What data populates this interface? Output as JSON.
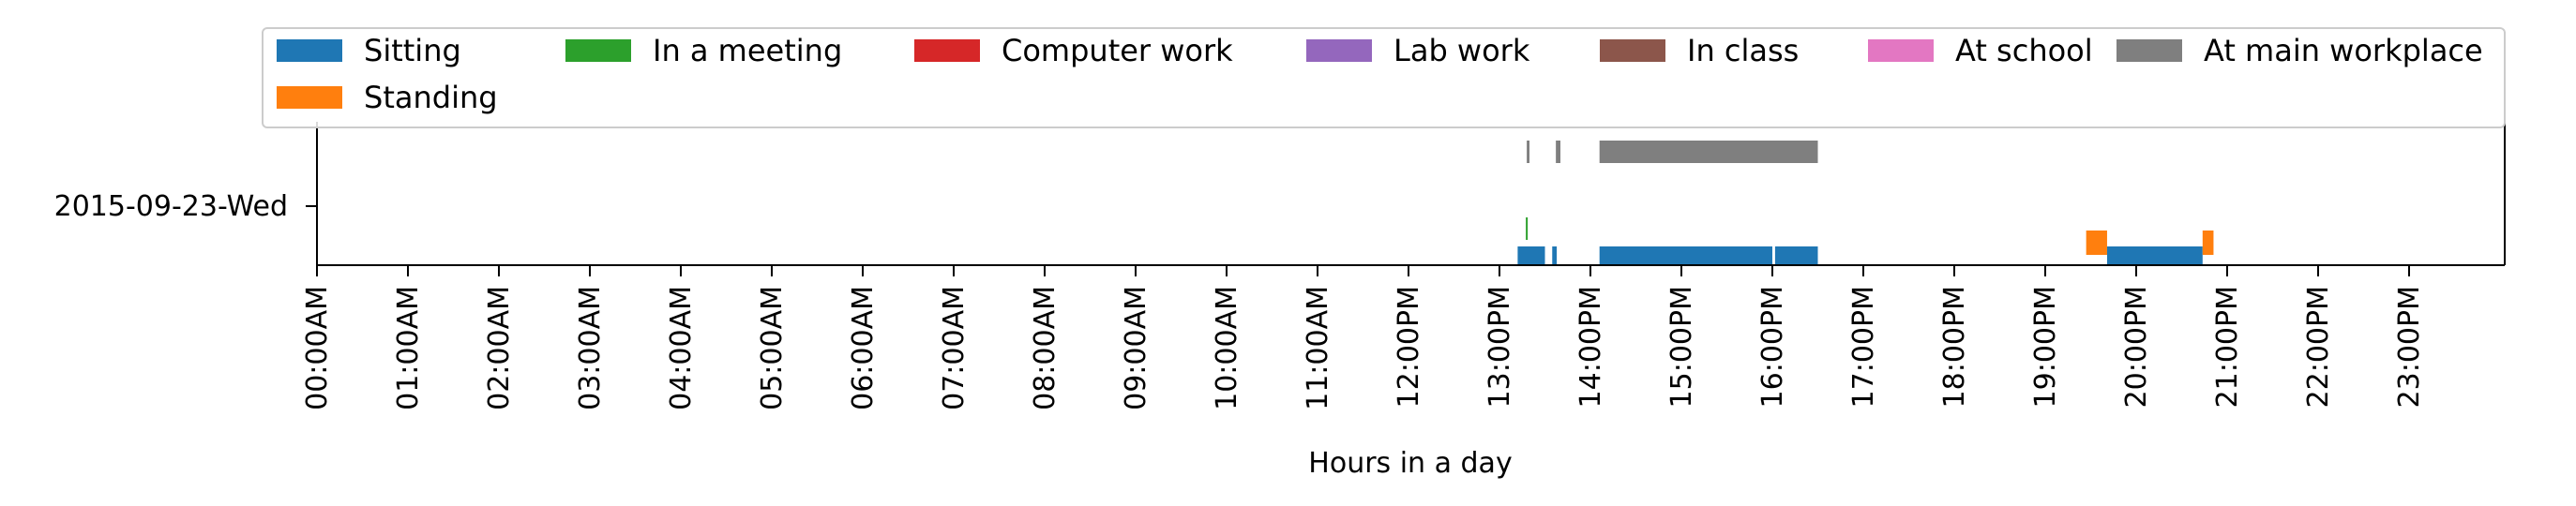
{
  "chart_data": {
    "type": "timeline",
    "xlabel": "Hours in a day",
    "x_ticks": [
      "00:00AM",
      "01:00AM",
      "02:00AM",
      "03:00AM",
      "04:00AM",
      "05:00AM",
      "06:00AM",
      "07:00AM",
      "08:00AM",
      "09:00AM",
      "10:00AM",
      "11:00AM",
      "12:00PM",
      "13:00PM",
      "14:00PM",
      "15:00PM",
      "16:00PM",
      "17:00PM",
      "18:00PM",
      "19:00PM",
      "20:00PM",
      "21:00PM",
      "22:00PM",
      "23:00PM"
    ],
    "xlim_hours": [
      0,
      24
    ],
    "y_ticks": [
      "2015-09-23-Wed"
    ],
    "legend": {
      "placement": "top",
      "entries": [
        {
          "name": "Sitting",
          "color": "#1f77b4"
        },
        {
          "name": "In a meeting",
          "color": "#2ca02c"
        },
        {
          "name": "Computer work",
          "color": "#d62728"
        },
        {
          "name": "Lab work",
          "color": "#9467bd"
        },
        {
          "name": "In class",
          "color": "#8c564b"
        },
        {
          "name": "At school",
          "color": "#e377c2"
        },
        {
          "name": "At main workplace",
          "color": "#7f7f7f"
        },
        {
          "name": "Standing",
          "color": "#ff7f0e"
        }
      ]
    },
    "series": [
      {
        "name": "Sitting",
        "color": "#1f77b4",
        "intervals": [
          [
            13.2,
            13.5
          ],
          [
            13.58,
            13.63
          ],
          [
            14.1,
            16.0
          ],
          [
            16.03,
            16.5
          ],
          [
            19.68,
            20.73
          ]
        ]
      },
      {
        "name": "Standing",
        "color": "#ff7f0e",
        "intervals": [
          [
            19.45,
            19.68
          ],
          [
            20.73,
            20.85
          ]
        ]
      },
      {
        "name": "In a meeting",
        "color": "#2ca02c",
        "intervals": [
          [
            13.29,
            13.31
          ]
        ]
      },
      {
        "name": "At main workplace",
        "color": "#7f7f7f",
        "intervals": [
          [
            13.3,
            13.33
          ],
          [
            13.62,
            13.67
          ],
          [
            14.1,
            16.5
          ]
        ]
      }
    ]
  }
}
